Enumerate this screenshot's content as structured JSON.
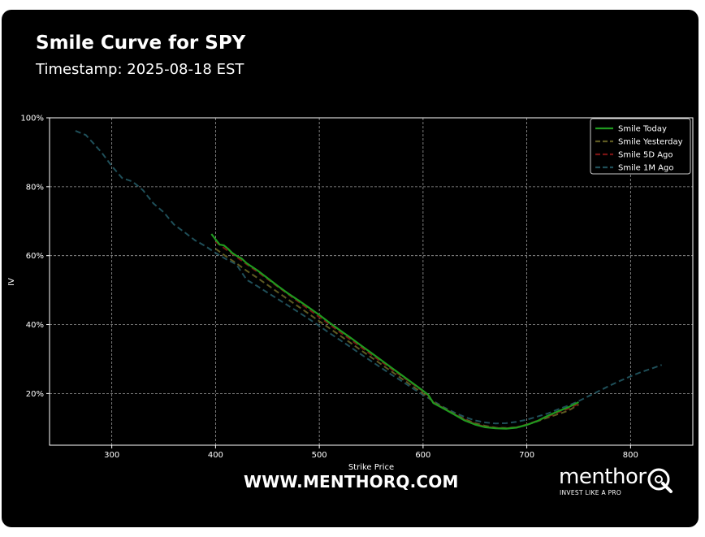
{
  "header": {
    "title": "Smile Curve for SPY",
    "subtitle": "Timestamp: 2025-08-18 EST"
  },
  "footer": {
    "url": "WWW.MENTHORQ.COM",
    "logo_word": "menthor",
    "logo_tagline": "INVEST LIKE A PRO"
  },
  "chart_data": {
    "type": "line",
    "title": "Smile Curve for SPY",
    "xlabel": "Strike Price",
    "ylabel": "IV",
    "xlim": [
      240,
      860
    ],
    "ylim": [
      0.05,
      1.0
    ],
    "x_ticks": [
      300,
      400,
      500,
      600,
      700,
      800
    ],
    "y_ticks": [
      0.2,
      0.4,
      0.6,
      0.8,
      1.0
    ],
    "x_tick_labels": [
      "300",
      "400",
      "500",
      "600",
      "700",
      "800"
    ],
    "y_tick_labels": [
      "20%",
      "40%",
      "60%",
      "80%",
      "100%"
    ],
    "grid": true,
    "legend_position": "top-right",
    "series": [
      {
        "name": "Smile Today",
        "color": "#1f9a1f",
        "dash": "solid",
        "x": [
          396,
          400,
          404,
          408,
          412,
          416,
          420,
          425,
          430,
          435,
          440,
          450,
          460,
          470,
          480,
          490,
          500,
          510,
          520,
          530,
          540,
          550,
          560,
          570,
          580,
          590,
          600,
          605,
          610,
          620,
          630,
          640,
          650,
          660,
          670,
          680,
          690,
          700,
          710,
          720,
          730,
          740,
          750
        ],
        "y": [
          0.663,
          0.647,
          0.632,
          0.63,
          0.62,
          0.608,
          0.6,
          0.592,
          0.578,
          0.568,
          0.558,
          0.535,
          0.512,
          0.49,
          0.47,
          0.449,
          0.428,
          0.405,
          0.383,
          0.362,
          0.34,
          0.318,
          0.296,
          0.274,
          0.252,
          0.23,
          0.208,
          0.196,
          0.172,
          0.156,
          0.139,
          0.122,
          0.11,
          0.102,
          0.099,
          0.098,
          0.101,
          0.109,
          0.12,
          0.135,
          0.148,
          0.16,
          0.175
        ]
      },
      {
        "name": "Smile Yesterday",
        "color": "#5e5a22",
        "dash": "dashed",
        "x": [
          400,
          410,
          420,
          430,
          440,
          450,
          460,
          470,
          480,
          490,
          500,
          510,
          520,
          530,
          540,
          550,
          560,
          570,
          580,
          590,
          600,
          605,
          610,
          620,
          630,
          640,
          650,
          660,
          670,
          680,
          690,
          700,
          710,
          720,
          730,
          740,
          750
        ],
        "y": [
          0.62,
          0.598,
          0.578,
          0.556,
          0.536,
          0.515,
          0.494,
          0.473,
          0.452,
          0.431,
          0.41,
          0.389,
          0.368,
          0.347,
          0.326,
          0.305,
          0.284,
          0.263,
          0.242,
          0.221,
          0.2,
          0.19,
          0.175,
          0.158,
          0.141,
          0.126,
          0.114,
          0.106,
          0.101,
          0.1,
          0.102,
          0.109,
          0.119,
          0.13,
          0.14,
          0.15,
          0.168
        ]
      },
      {
        "name": "Smile 5D Ago",
        "color": "#7a1414",
        "dash": "dashed",
        "x": [
          400,
          410,
          420,
          430,
          440,
          450,
          460,
          470,
          480,
          490,
          500,
          510,
          520,
          530,
          540,
          550,
          560,
          570,
          580,
          590,
          600,
          605,
          610,
          620,
          630,
          640,
          650,
          660,
          670,
          680,
          690,
          700,
          710,
          720,
          730,
          740,
          750
        ],
        "y": [
          0.64,
          0.618,
          0.597,
          0.575,
          0.554,
          0.532,
          0.51,
          0.488,
          0.466,
          0.444,
          0.422,
          0.4,
          0.378,
          0.357,
          0.335,
          0.313,
          0.292,
          0.27,
          0.249,
          0.228,
          0.206,
          0.194,
          0.174,
          0.157,
          0.14,
          0.124,
          0.112,
          0.104,
          0.1,
          0.099,
          0.102,
          0.11,
          0.121,
          0.133,
          0.145,
          0.156,
          0.17
        ]
      },
      {
        "name": "Smile 1M Ago",
        "color": "#1f4f59",
        "dash": "dashed",
        "x": [
          265,
          275,
          290,
          300,
          310,
          320,
          330,
          340,
          350,
          360,
          370,
          380,
          390,
          400,
          410,
          420,
          430,
          440,
          450,
          460,
          470,
          480,
          490,
          500,
          510,
          520,
          530,
          540,
          550,
          560,
          570,
          580,
          590,
          600,
          610,
          620,
          630,
          640,
          650,
          660,
          670,
          680,
          690,
          700,
          710,
          720,
          730,
          740,
          750,
          760,
          770,
          780,
          790,
          800,
          810,
          820,
          830
        ],
        "y": [
          0.962,
          0.95,
          0.9,
          0.86,
          0.825,
          0.815,
          0.79,
          0.752,
          0.726,
          0.69,
          0.668,
          0.645,
          0.628,
          0.608,
          0.59,
          0.575,
          0.53,
          0.512,
          0.493,
          0.474,
          0.455,
          0.436,
          0.416,
          0.396,
          0.375,
          0.355,
          0.335,
          0.314,
          0.294,
          0.274,
          0.254,
          0.235,
          0.215,
          0.196,
          0.178,
          0.16,
          0.145,
          0.132,
          0.122,
          0.116,
          0.113,
          0.114,
          0.118,
          0.124,
          0.133,
          0.142,
          0.154,
          0.165,
          0.178,
          0.193,
          0.208,
          0.223,
          0.237,
          0.25,
          0.262,
          0.272,
          0.283
        ]
      }
    ]
  }
}
